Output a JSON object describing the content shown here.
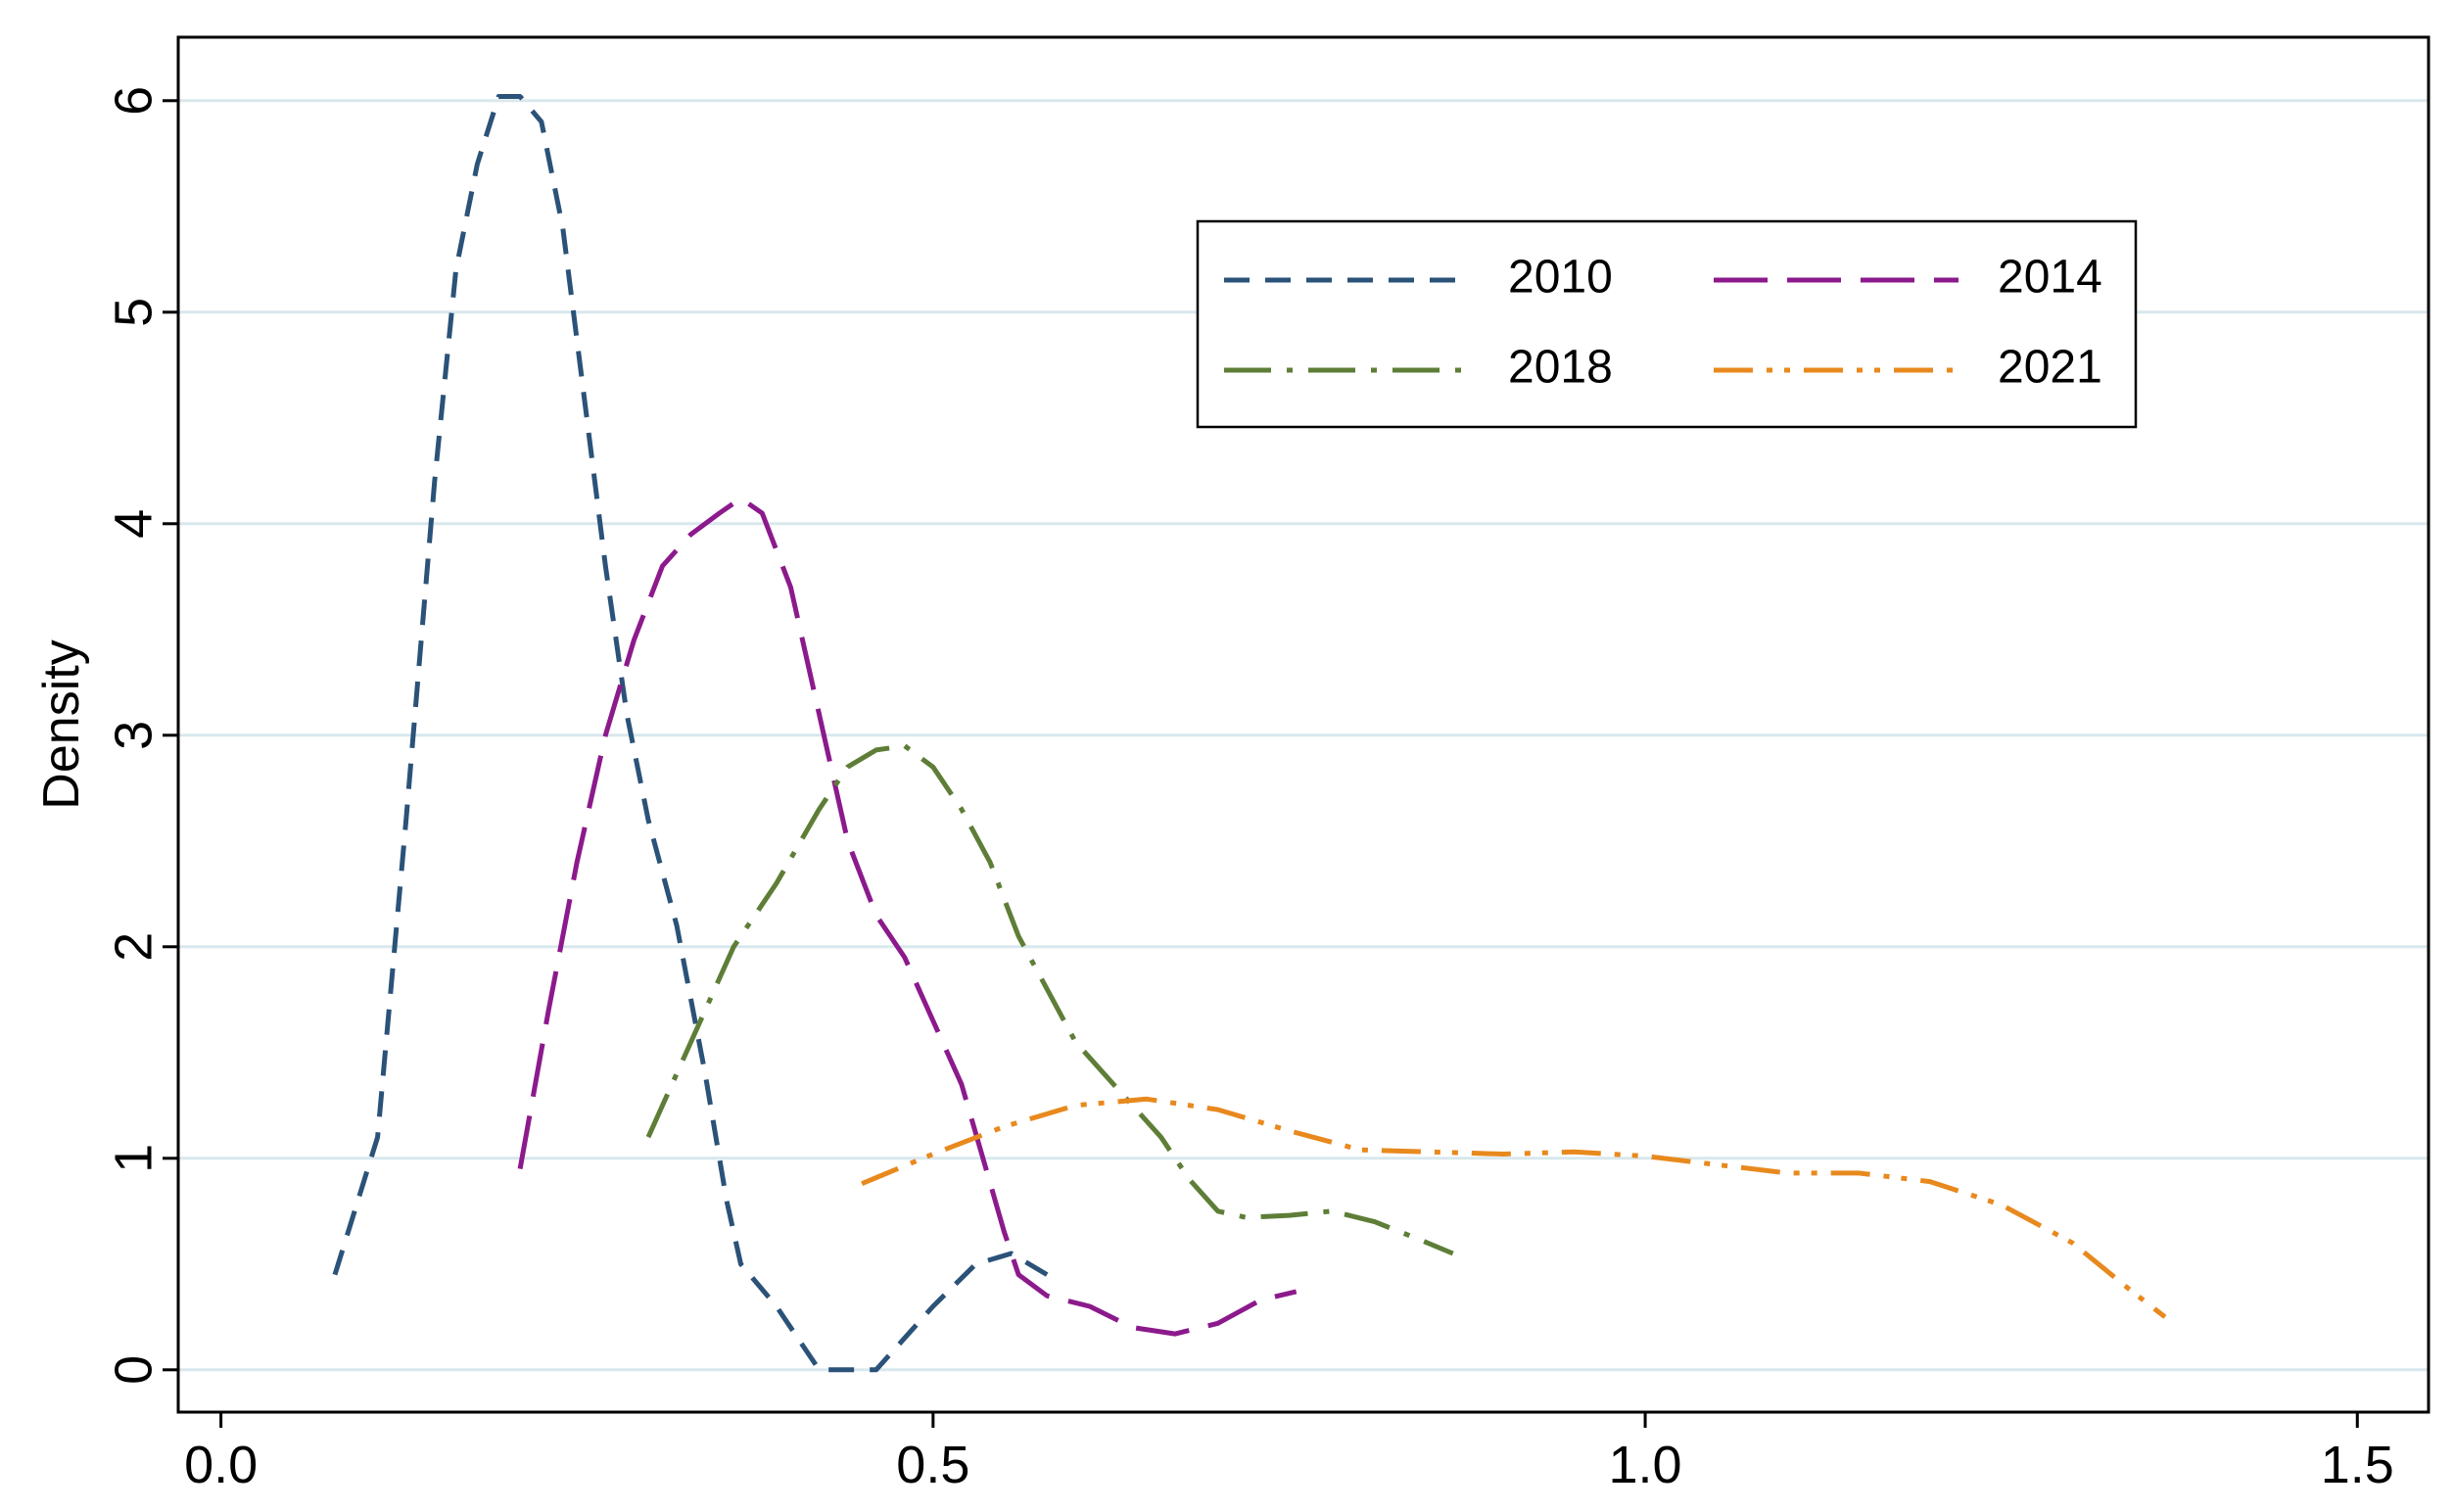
{
  "chart_data": {
    "type": "line",
    "title": "",
    "xlabel": "",
    "ylabel": "Density",
    "xlim": [
      -0.03,
      1.55
    ],
    "ylim": [
      -0.2,
      6.3
    ],
    "x_ticks": [
      {
        "value": 0.0,
        "label": "0.0"
      },
      {
        "value": 0.5,
        "label": "0.5"
      },
      {
        "value": 1.0,
        "label": "1.0"
      },
      {
        "value": 1.5,
        "label": "1.5"
      }
    ],
    "y_ticks": [
      {
        "value": 0,
        "label": "0"
      },
      {
        "value": 1,
        "label": "1"
      },
      {
        "value": 2,
        "label": "2"
      },
      {
        "value": 3,
        "label": "3"
      },
      {
        "value": 4,
        "label": "4"
      },
      {
        "value": 5,
        "label": "5"
      },
      {
        "value": 6,
        "label": "6"
      }
    ],
    "grid": "horizontal",
    "legend_position": "top-right",
    "series": [
      {
        "name": "2010",
        "color": "#2b5278",
        "dash": "dash",
        "points": [
          [
            0.08,
            0.45
          ],
          [
            0.11,
            1.1
          ],
          [
            0.13,
            2.6
          ],
          [
            0.15,
            4.2
          ],
          [
            0.165,
            5.2
          ],
          [
            0.18,
            5.7
          ],
          [
            0.195,
            6.02
          ],
          [
            0.21,
            6.02
          ],
          [
            0.225,
            5.9
          ],
          [
            0.24,
            5.4
          ],
          [
            0.255,
            4.6
          ],
          [
            0.27,
            3.8
          ],
          [
            0.285,
            3.1
          ],
          [
            0.3,
            2.6
          ],
          [
            0.32,
            2.1
          ],
          [
            0.34,
            1.4
          ],
          [
            0.355,
            0.8
          ],
          [
            0.365,
            0.5
          ],
          [
            0.39,
            0.3
          ],
          [
            0.42,
            0.0
          ],
          [
            0.46,
            0.0
          ],
          [
            0.5,
            0.3
          ],
          [
            0.53,
            0.5
          ],
          [
            0.555,
            0.55
          ],
          [
            0.58,
            0.45
          ]
        ]
      },
      {
        "name": "2014",
        "color": "#8c1a8c",
        "dash": "longdash",
        "points": [
          [
            0.21,
            0.95
          ],
          [
            0.23,
            1.7
          ],
          [
            0.25,
            2.4
          ],
          [
            0.27,
            3.0
          ],
          [
            0.29,
            3.45
          ],
          [
            0.31,
            3.8
          ],
          [
            0.33,
            3.95
          ],
          [
            0.35,
            4.05
          ],
          [
            0.365,
            4.12
          ],
          [
            0.38,
            4.05
          ],
          [
            0.4,
            3.7
          ],
          [
            0.42,
            3.1
          ],
          [
            0.44,
            2.5
          ],
          [
            0.46,
            2.15
          ],
          [
            0.48,
            1.95
          ],
          [
            0.5,
            1.65
          ],
          [
            0.52,
            1.35
          ],
          [
            0.535,
            1.0
          ],
          [
            0.55,
            0.65
          ],
          [
            0.56,
            0.45
          ],
          [
            0.58,
            0.35
          ],
          [
            0.61,
            0.3
          ],
          [
            0.64,
            0.2
          ],
          [
            0.67,
            0.17
          ],
          [
            0.7,
            0.22
          ],
          [
            0.73,
            0.33
          ],
          [
            0.755,
            0.37
          ]
        ]
      },
      {
        "name": "2018",
        "color": "#5e7e38",
        "dash": "dashdot",
        "points": [
          [
            0.3,
            1.1
          ],
          [
            0.33,
            1.55
          ],
          [
            0.36,
            2.0
          ],
          [
            0.39,
            2.3
          ],
          [
            0.42,
            2.65
          ],
          [
            0.44,
            2.85
          ],
          [
            0.46,
            2.93
          ],
          [
            0.48,
            2.95
          ],
          [
            0.5,
            2.85
          ],
          [
            0.52,
            2.65
          ],
          [
            0.54,
            2.4
          ],
          [
            0.56,
            2.05
          ],
          [
            0.58,
            1.8
          ],
          [
            0.6,
            1.55
          ],
          [
            0.62,
            1.4
          ],
          [
            0.64,
            1.25
          ],
          [
            0.66,
            1.1
          ],
          [
            0.68,
            0.9
          ],
          [
            0.7,
            0.75
          ],
          [
            0.72,
            0.72
          ],
          [
            0.75,
            0.73
          ],
          [
            0.78,
            0.75
          ],
          [
            0.81,
            0.7
          ],
          [
            0.84,
            0.62
          ],
          [
            0.865,
            0.55
          ]
        ]
      },
      {
        "name": "2021",
        "color": "#e8891e",
        "dash": "dashdotdot",
        "points": [
          [
            0.45,
            0.88
          ],
          [
            0.5,
            1.02
          ],
          [
            0.55,
            1.15
          ],
          [
            0.6,
            1.25
          ],
          [
            0.65,
            1.28
          ],
          [
            0.7,
            1.23
          ],
          [
            0.75,
            1.13
          ],
          [
            0.8,
            1.04
          ],
          [
            0.85,
            1.03
          ],
          [
            0.9,
            1.02
          ],
          [
            0.95,
            1.03
          ],
          [
            1.0,
            1.01
          ],
          [
            1.05,
            0.97
          ],
          [
            1.1,
            0.93
          ],
          [
            1.15,
            0.93
          ],
          [
            1.2,
            0.89
          ],
          [
            1.25,
            0.78
          ],
          [
            1.3,
            0.6
          ],
          [
            1.34,
            0.38
          ],
          [
            1.365,
            0.25
          ]
        ]
      }
    ]
  }
}
